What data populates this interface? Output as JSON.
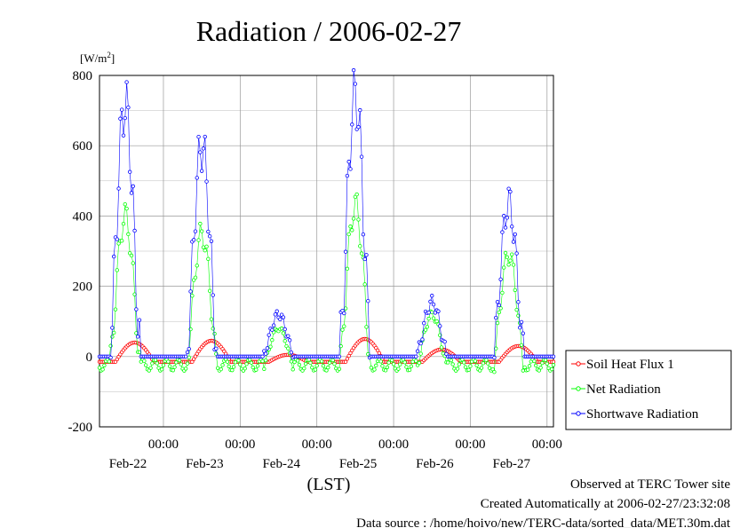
{
  "chart_data": {
    "type": "line",
    "title": "Radiation / 2006-02-27",
    "ylabel": "[W/m",
    "ylabel_superscript": "2",
    "ylabel_suffix": "]",
    "xlabel": "(LST)",
    "ylim": [
      -200,
      800
    ],
    "yticks": [
      -200,
      0,
      200,
      400,
      600,
      800
    ],
    "xlim": [
      0,
      144
    ],
    "xticks": [
      {
        "time": "00:00",
        "date": "Feb-22",
        "x": 24
      },
      {
        "time": "00:00",
        "date": "Feb-23",
        "x": 48
      },
      {
        "time": "00:00",
        "date": "Feb-24",
        "x": 72
      },
      {
        "time": "00:00",
        "date": "Feb-25",
        "x": 96
      },
      {
        "time": "00:00",
        "date": "Feb-26",
        "x": 120
      },
      {
        "time": "00:00",
        "date": "Feb-27",
        "x": 144
      }
    ],
    "grid": true,
    "legend_position": "right",
    "series": [
      {
        "name": "Soil Heat Flux 1",
        "color": "#ff0000",
        "daily_peaks": [
          40,
          45,
          5,
          50,
          20,
          30
        ],
        "baseline": -15
      },
      {
        "name": "Net Radiation",
        "color": "#00ff00",
        "daily_peaks": [
          400,
          350,
          80,
          430,
          120,
          290
        ],
        "baseline": -40
      },
      {
        "name": "Shortwave Radiation",
        "color": "#0000ff",
        "daily_peaks": [
          720,
          600,
          120,
          745,
          155,
          440
        ],
        "baseline": 0
      }
    ]
  },
  "footer": {
    "line1": "Observed at TERC Tower site",
    "line2": "Created Automatically at 2006-02-27/23:32:08",
    "line3": "Data source : /home/hoivo/new/TERC-data/sorted_data/MET.30m.dat"
  }
}
